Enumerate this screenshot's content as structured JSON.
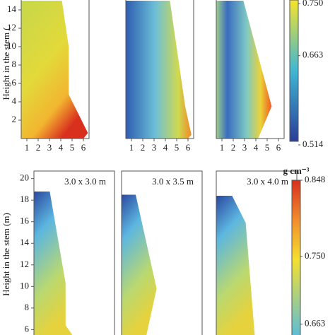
{
  "chart_data": [
    {
      "type": "heatmap",
      "ylabel": "Height in the stem (",
      "ylim": [
        0,
        15
      ],
      "yticks": [
        2,
        4,
        6,
        8,
        10,
        12,
        14
      ],
      "xlim": [
        0.5,
        6.5
      ],
      "xticks": [
        1,
        2,
        3,
        4,
        5,
        6
      ],
      "panels": [
        {
          "x": [
            0.5,
            0.5,
            4.1,
            4.7,
            4.7,
            6.4,
            6.0
          ],
          "y": [
            0,
            15,
            15,
            10,
            4.8,
            0.6,
            0
          ]
        },
        {
          "x": [
            0.5,
            0.5,
            4.4,
            5.75,
            6.3,
            6.0
          ],
          "y": [
            0,
            15,
            15,
            3.5,
            0.4,
            0
          ]
        },
        {
          "x": [
            0.5,
            0.5,
            2.9,
            5.4,
            4.2
          ],
          "y": [
            0,
            15,
            15,
            3.5,
            0
          ]
        }
      ],
      "colorbar": {
        "lim": [
          0.514,
          0.75
        ],
        "ticks": [
          {
            "value": 0.75,
            "label": "0.750"
          },
          0.663,
          0.514
        ]
      }
    },
    {
      "type": "heatmap",
      "ylabel": "Height in the stem (m)",
      "ylim": [
        5.5,
        20.5
      ],
      "yticks": [
        6,
        8,
        10,
        12,
        14,
        16,
        18,
        20
      ],
      "xlim": [
        0.5,
        6.5
      ],
      "panels": [
        {
          "title": "3.0 x 3.0 m",
          "x": [
            0.5,
            0.5,
            1.9,
            3.3,
            3.3,
            3.9
          ],
          "y": [
            5.5,
            18.8,
            18.8,
            10.3,
            6.4,
            5.5
          ]
        },
        {
          "title": "3.0 x 3.5 m",
          "x": [
            0.5,
            0.5,
            1.75,
            3.6,
            2.7
          ],
          "y": [
            5.5,
            18.5,
            18.5,
            9.8,
            5.5
          ]
        },
        {
          "title": "3.0 x 4.0 m",
          "x": [
            0.5,
            0.5,
            1.9,
            3.1,
            3.9
          ],
          "y": [
            5.5,
            18.4,
            18.4,
            15.9,
            5.5
          ]
        }
      ],
      "colorbar": {
        "title": "g cm⁻³",
        "lim": [
          0.65,
          0.848
        ],
        "ticks": [
          0.848,
          {
            "value": 0.75,
            "label": "0.750"
          },
          0.663
        ]
      }
    }
  ]
}
